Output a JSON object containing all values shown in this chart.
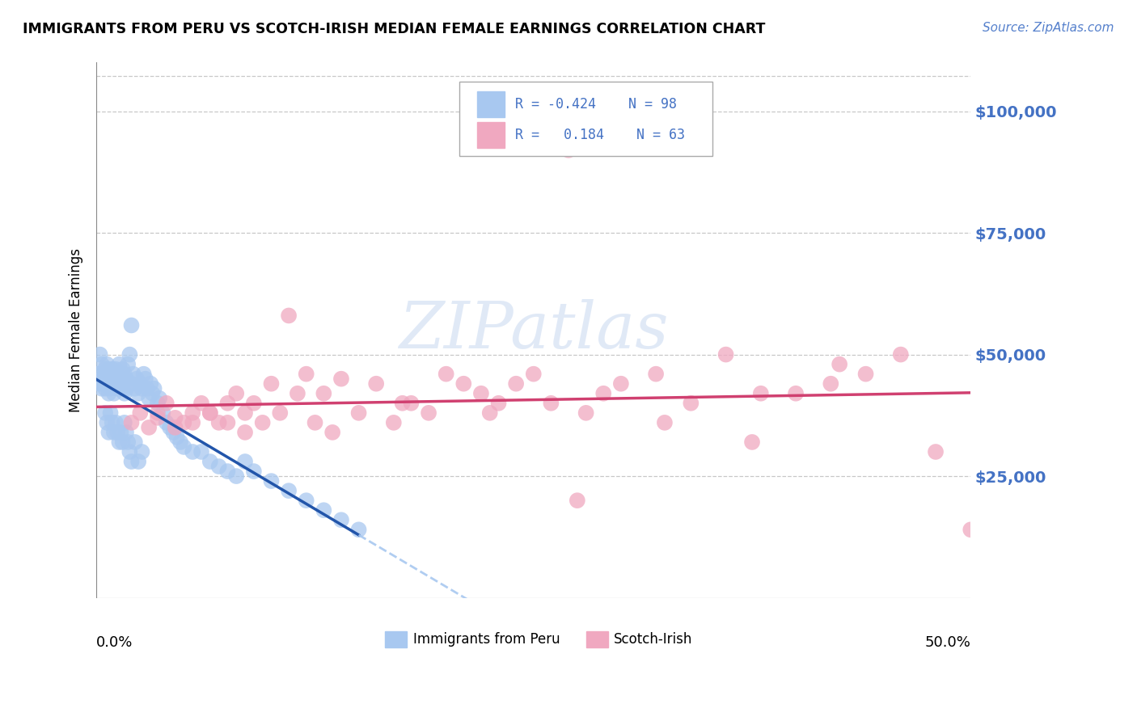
{
  "title": "IMMIGRANTS FROM PERU VS SCOTCH-IRISH MEDIAN FEMALE EARNINGS CORRELATION CHART",
  "source": "Source: ZipAtlas.com",
  "ylabel": "Median Female Earnings",
  "ytick_labels": [
    "$25,000",
    "$50,000",
    "$75,000",
    "$100,000"
  ],
  "ytick_values": [
    25000,
    50000,
    75000,
    100000
  ],
  "xlim": [
    0.0,
    0.5
  ],
  "ylim": [
    0,
    110000
  ],
  "background_color": "#ffffff",
  "grid_color": "#c8c8c8",
  "watermark": "ZIPatlas",
  "color_peru": "#a8c8f0",
  "color_scotch": "#f0a8c0",
  "color_blue_text": "#4472c4",
  "color_blue_line": "#2255aa",
  "color_pink_line": "#d04070",
  "peru_x": [
    0.001,
    0.002,
    0.002,
    0.003,
    0.003,
    0.003,
    0.004,
    0.004,
    0.005,
    0.005,
    0.005,
    0.006,
    0.006,
    0.006,
    0.007,
    0.007,
    0.007,
    0.008,
    0.008,
    0.008,
    0.009,
    0.009,
    0.01,
    0.01,
    0.01,
    0.011,
    0.011,
    0.012,
    0.012,
    0.013,
    0.013,
    0.014,
    0.014,
    0.015,
    0.015,
    0.016,
    0.016,
    0.017,
    0.017,
    0.018,
    0.019,
    0.02,
    0.02,
    0.021,
    0.022,
    0.023,
    0.024,
    0.025,
    0.026,
    0.027,
    0.028,
    0.029,
    0.03,
    0.031,
    0.032,
    0.033,
    0.035,
    0.036,
    0.038,
    0.04,
    0.042,
    0.044,
    0.046,
    0.048,
    0.05,
    0.055,
    0.06,
    0.065,
    0.07,
    0.075,
    0.08,
    0.085,
    0.09,
    0.1,
    0.11,
    0.12,
    0.13,
    0.14,
    0.15,
    0.005,
    0.006,
    0.007,
    0.008,
    0.009,
    0.01,
    0.011,
    0.012,
    0.013,
    0.014,
    0.015,
    0.016,
    0.017,
    0.018,
    0.019,
    0.02,
    0.022,
    0.024,
    0.026
  ],
  "peru_y": [
    46000,
    50000,
    44000,
    48000,
    45000,
    43000,
    46000,
    44000,
    47000,
    45000,
    43000,
    48000,
    44000,
    46000,
    42000,
    47000,
    45000,
    44000,
    46000,
    43000,
    45000,
    47000,
    44000,
    46000,
    42000,
    45000,
    47000,
    43000,
    46000,
    48000,
    44000,
    45000,
    43000,
    47000,
    44000,
    46000,
    42000,
    45000,
    43000,
    48000,
    50000,
    44000,
    56000,
    46000,
    43000,
    45000,
    42000,
    44000,
    43000,
    46000,
    45000,
    43000,
    41000,
    44000,
    42000,
    43000,
    40000,
    41000,
    38000,
    36000,
    35000,
    34000,
    33000,
    32000,
    31000,
    30000,
    30000,
    28000,
    27000,
    26000,
    25000,
    28000,
    26000,
    24000,
    22000,
    20000,
    18000,
    16000,
    14000,
    38000,
    36000,
    34000,
    38000,
    36000,
    34000,
    36000,
    34000,
    32000,
    34000,
    32000,
    36000,
    34000,
    32000,
    30000,
    28000,
    32000,
    28000,
    30000
  ],
  "scotch_x": [
    0.02,
    0.025,
    0.03,
    0.035,
    0.04,
    0.045,
    0.05,
    0.055,
    0.06,
    0.065,
    0.07,
    0.075,
    0.08,
    0.085,
    0.09,
    0.1,
    0.11,
    0.12,
    0.13,
    0.14,
    0.15,
    0.16,
    0.17,
    0.18,
    0.19,
    0.2,
    0.21,
    0.22,
    0.23,
    0.24,
    0.25,
    0.26,
    0.27,
    0.28,
    0.29,
    0.3,
    0.32,
    0.34,
    0.36,
    0.38,
    0.4,
    0.42,
    0.44,
    0.46,
    0.48,
    0.5,
    0.035,
    0.045,
    0.055,
    0.065,
    0.075,
    0.085,
    0.095,
    0.105,
    0.115,
    0.125,
    0.135,
    0.175,
    0.225,
    0.275,
    0.325,
    0.375,
    0.425
  ],
  "scotch_y": [
    36000,
    38000,
    35000,
    38000,
    40000,
    37000,
    36000,
    38000,
    40000,
    38000,
    36000,
    40000,
    42000,
    38000,
    40000,
    44000,
    58000,
    46000,
    42000,
    45000,
    38000,
    44000,
    36000,
    40000,
    38000,
    46000,
    44000,
    42000,
    40000,
    44000,
    46000,
    40000,
    92000,
    38000,
    42000,
    44000,
    46000,
    40000,
    50000,
    42000,
    42000,
    44000,
    46000,
    50000,
    30000,
    14000,
    37000,
    35000,
    36000,
    38000,
    36000,
    34000,
    36000,
    38000,
    42000,
    36000,
    34000,
    40000,
    38000,
    20000,
    36000,
    32000,
    48000
  ]
}
